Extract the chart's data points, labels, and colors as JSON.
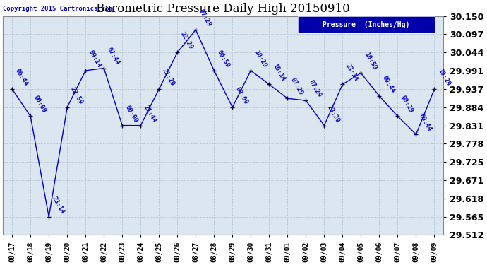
{
  "title": "Barometric Pressure Daily High 20150910",
  "copyright": "Copyright 2015 Cartronics.com",
  "legend_label": "Pressure  (Inches/Hg)",
  "dates": [
    "08/17",
    "08/18",
    "08/19",
    "08/20",
    "08/21",
    "08/22",
    "08/23",
    "08/24",
    "08/25",
    "08/26",
    "08/27",
    "08/28",
    "08/29",
    "08/30",
    "08/31",
    "09/01",
    "09/02",
    "09/03",
    "09/04",
    "09/05",
    "09/06",
    "09/07",
    "09/08",
    "09/09"
  ],
  "values": [
    29.937,
    29.858,
    29.565,
    29.884,
    29.991,
    29.998,
    29.831,
    29.831,
    29.937,
    30.044,
    30.11,
    29.991,
    29.884,
    29.991,
    29.951,
    29.91,
    29.904,
    29.831,
    29.951,
    29.984,
    29.917,
    29.858,
    29.805,
    29.937
  ],
  "annotations": [
    "06:44",
    "00:00",
    "23:14",
    "22:59",
    "09:14",
    "07:44",
    "00:00",
    "21:44",
    "21:29",
    "22:29",
    "07:29",
    "06:59",
    "00:00",
    "10:29",
    "10:14",
    "07:29",
    "07:29",
    "23:29",
    "23:14",
    "10:59",
    "00:44",
    "08:29",
    "00:44",
    "10:29"
  ],
  "ylim_min": 29.512,
  "ylim_max": 30.15,
  "yticks": [
    29.512,
    29.565,
    29.618,
    29.671,
    29.725,
    29.778,
    29.831,
    29.884,
    29.937,
    29.991,
    30.044,
    30.097,
    30.15
  ],
  "line_color": "#0000cc",
  "marker_color": "#000044",
  "bg_color": "#ffffff",
  "plot_bg_color": "#dce6f0",
  "grid_color": "#b8c8d8",
  "title_color": "#000000",
  "annotation_color": "#0000cc",
  "legend_bg": "#0000aa",
  "legend_text_color": "#ffffff",
  "ytick_fontsize": 9,
  "xtick_fontsize": 7,
  "annotation_fontsize": 6.5,
  "title_fontsize": 12
}
